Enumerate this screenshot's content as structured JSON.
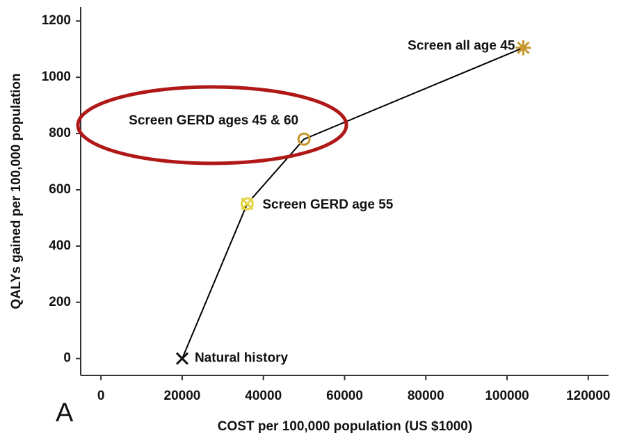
{
  "chart_data": {
    "type": "line",
    "x_label": "COST per 100,000 population (US $1000)",
    "y_label": "QALYs gained per 100,000 population",
    "panel_label": "A",
    "xlim": [
      -5000,
      125000
    ],
    "xticks": [
      0,
      20000,
      40000,
      60000,
      80000,
      100000,
      120000
    ],
    "ylim": [
      -60,
      1250
    ],
    "yticks": [
      0,
      200,
      400,
      600,
      800,
      1000,
      1200
    ],
    "line_color": "#000000",
    "x": [
      20000,
      36000,
      50000,
      104000
    ],
    "values": [
      0,
      550,
      780,
      1105
    ],
    "point_labels": [
      "Natural history",
      "Screen GERD age 55",
      "Screen GERD ages 45 & 60",
      "Screen all age 45"
    ],
    "markers": [
      "x",
      "circle-x",
      "circle",
      "asterisk"
    ],
    "marker_colors": [
      "#111111",
      "#e3d542",
      "#c8962a",
      "#c8962a"
    ],
    "highlight_color": "#b01818"
  }
}
